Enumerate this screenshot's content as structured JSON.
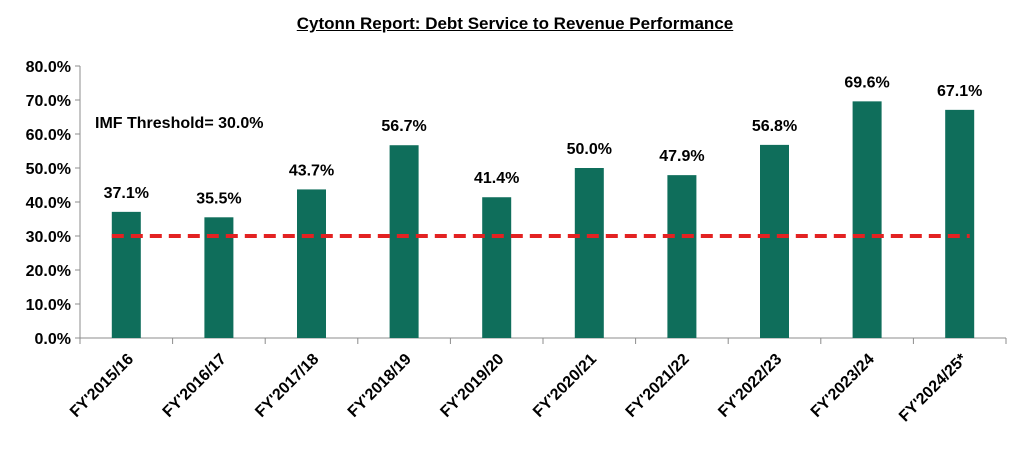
{
  "chart_data": {
    "type": "bar",
    "title": "Cytonn Report: Debt Service to Revenue Performance",
    "xlabel": "",
    "ylabel": "",
    "categories": [
      "FY'2015/16",
      "FY'2016/17",
      "FY'2017/18",
      "FY'2018/19",
      "FY'2019/20",
      "FY'2020/21",
      "FY'2021/22",
      "FY'2022/23",
      "FY'2023/24",
      "FY'2024/25*"
    ],
    "series": [
      {
        "values": [
          37.1,
          35.5,
          43.7,
          56.7,
          41.4,
          50.0,
          47.9,
          56.8,
          69.6,
          67.1
        ],
        "labels": [
          "37.1%",
          "35.5%",
          "43.7%",
          "56.7%",
          "41.4%",
          "50.0%",
          "47.9%",
          "56.8%",
          "69.6%",
          "67.1%"
        ],
        "color": "#0f6e5b"
      }
    ],
    "threshold": {
      "label": "IMF Threshold= 30.0%",
      "value": 30.0,
      "color": "#e32222",
      "style": "dashed"
    },
    "ylim": [
      0,
      80
    ],
    "yticks": [
      0,
      10,
      20,
      30,
      40,
      50,
      60,
      70,
      80
    ],
    "ytick_labels": [
      "0.0%",
      "10.0%",
      "20.0%",
      "30.0%",
      "40.0%",
      "50.0%",
      "60.0%",
      "70.0%",
      "80.0%"
    ],
    "grid": false,
    "legend": "none"
  }
}
